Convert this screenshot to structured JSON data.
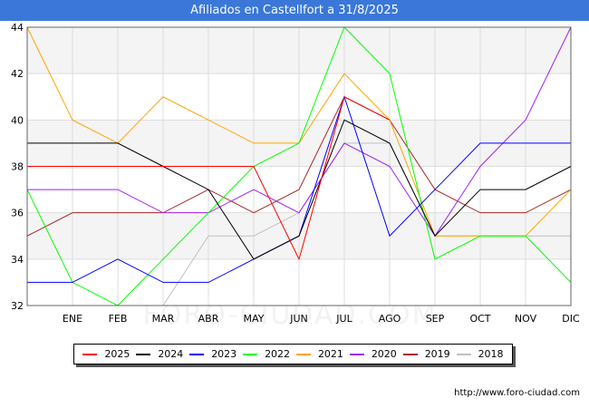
{
  "watermark": "FORO-CIUDAD.COM",
  "footer": {
    "url": "http://www.foro-ciudad.com"
  },
  "chart_data": {
    "type": "line",
    "title": "Afiliados en Castellfort a 31/8/2025",
    "categories": [
      "",
      "ENE",
      "FEB",
      "MAR",
      "ABR",
      "MAY",
      "JUN",
      "JUL",
      "AGO",
      "SEP",
      "OCT",
      "NOV",
      "DIC"
    ],
    "ylim": [
      32,
      44
    ],
    "yticks": [
      32,
      34,
      36,
      38,
      40,
      42,
      44
    ],
    "grid": true,
    "legend_position": "bottom",
    "series": [
      {
        "name": "2025",
        "color": "#ff0000",
        "values": [
          38,
          38,
          38,
          38,
          38,
          38,
          34,
          41,
          40,
          null,
          null,
          null,
          null
        ]
      },
      {
        "name": "2024",
        "color": "#000000",
        "values": [
          39,
          39,
          39,
          38,
          37,
          34,
          35,
          40,
          39,
          35,
          37,
          37,
          38
        ]
      },
      {
        "name": "2023",
        "color": "#0000ff",
        "values": [
          33,
          33,
          34,
          33,
          33,
          34,
          35,
          41,
          35,
          37,
          39,
          39,
          39
        ]
      },
      {
        "name": "2022",
        "color": "#00ff00",
        "values": [
          37,
          33,
          32,
          34,
          36,
          38,
          39,
          44,
          42,
          34,
          35,
          35,
          33
        ]
      },
      {
        "name": "2021",
        "color": "#ffa500",
        "values": [
          44,
          40,
          39,
          41,
          40,
          39,
          39,
          42,
          40,
          35,
          35,
          35,
          37
        ]
      },
      {
        "name": "2020",
        "color": "#a020f0",
        "values": [
          37,
          37,
          37,
          36,
          36,
          37,
          36,
          39,
          38,
          35,
          38,
          40,
          44
        ]
      },
      {
        "name": "2019",
        "color": "#a52a2a",
        "values": [
          35,
          36,
          36,
          36,
          37,
          36,
          37,
          41,
          40,
          37,
          36,
          36,
          37
        ]
      },
      {
        "name": "2018",
        "color": "#c0c0c0",
        "values": [
          null,
          null,
          null,
          32,
          35,
          35,
          36,
          39,
          39,
          35,
          35,
          35,
          35
        ]
      }
    ]
  }
}
